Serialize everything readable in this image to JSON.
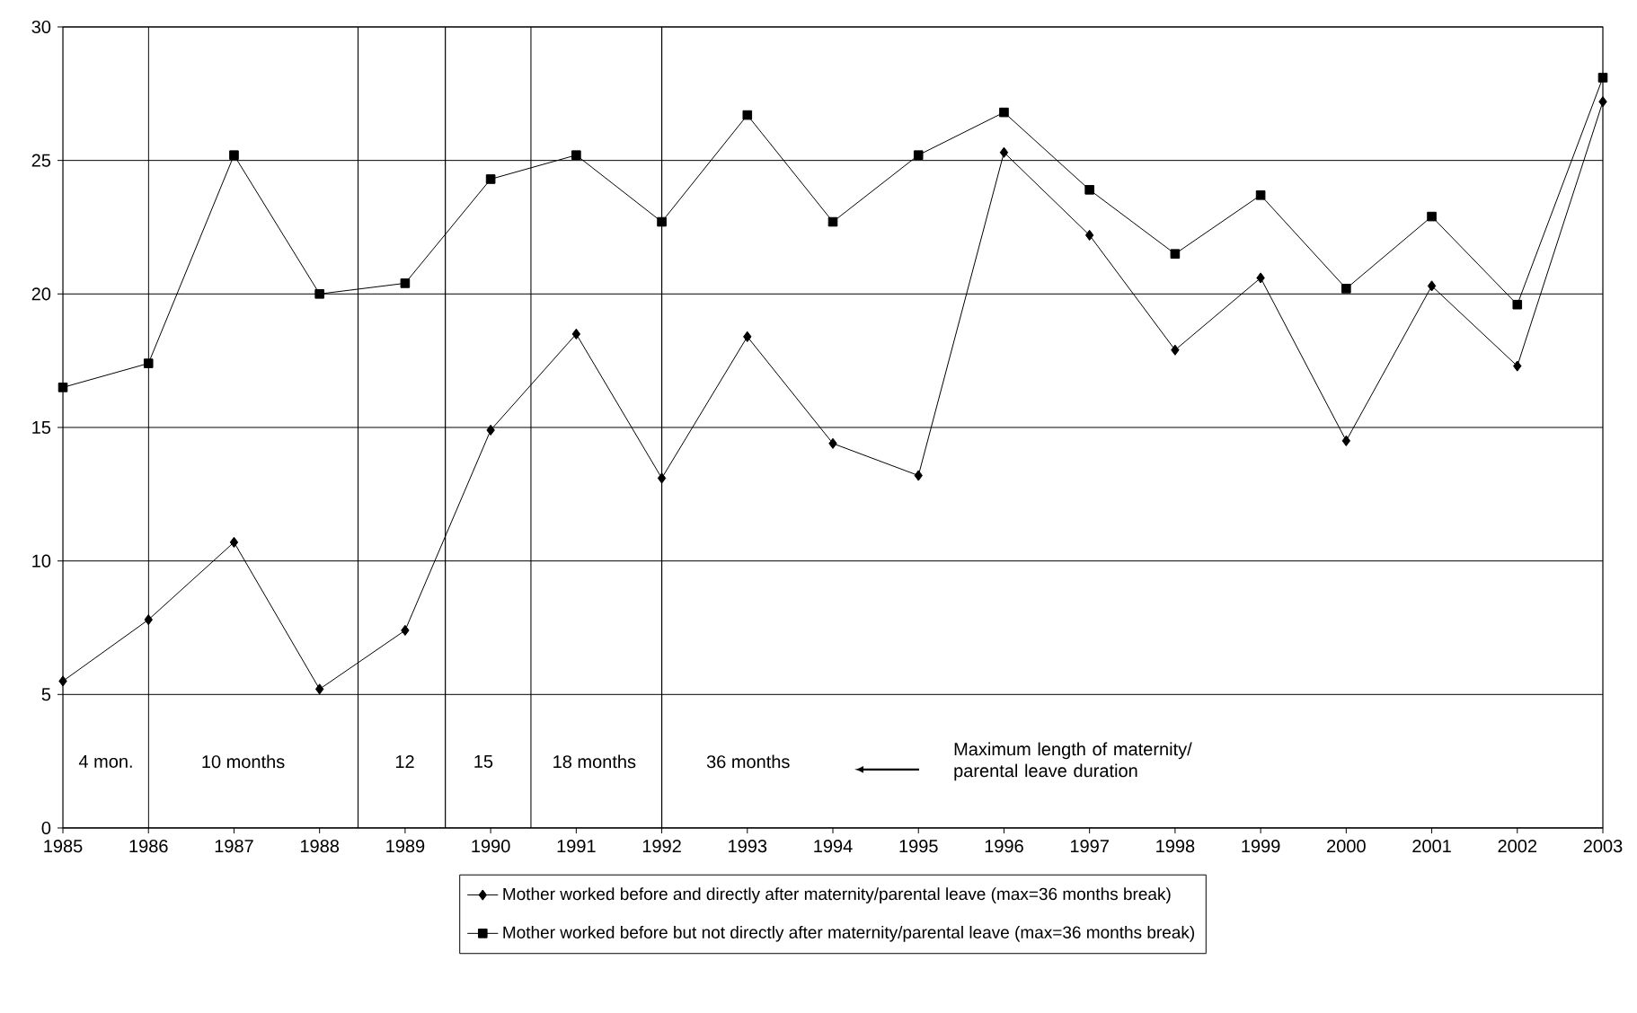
{
  "chart_data": {
    "type": "line",
    "x": [
      1985,
      1986,
      1987,
      1988,
      1989,
      1990,
      1991,
      1992,
      1993,
      1994,
      1995,
      1996,
      1997,
      1998,
      1999,
      2000,
      2001,
      2002,
      2003
    ],
    "series": [
      {
        "name": "Mother worked before and directly after maternity/parental leave (max=36 months break)",
        "color": "#000000",
        "marker": "diamond",
        "values": [
          5.5,
          7.8,
          10.7,
          5.2,
          7.4,
          14.9,
          18.5,
          13.1,
          18.4,
          14.4,
          13.2,
          25.3,
          22.2,
          17.9,
          20.6,
          14.5,
          20.3,
          17.3,
          27.2
        ]
      },
      {
        "name": "Mother worked before but not directly after maternity/parental leave (max=36 months break)",
        "color": "#000000",
        "marker": "square",
        "values": [
          16.5,
          17.4,
          25.2,
          20.0,
          20.4,
          24.3,
          25.2,
          22.7,
          26.7,
          22.7,
          25.2,
          26.8,
          23.9,
          21.5,
          23.7,
          20.2,
          22.9,
          19.6,
          28.1
        ]
      }
    ],
    "xlim": [
      1985,
      2003
    ],
    "xticks": [
      1985,
      1986,
      1987,
      1988,
      1989,
      1990,
      1991,
      1992,
      1993,
      1994,
      1995,
      1996,
      1997,
      1998,
      1999,
      2000,
      2001,
      2002,
      2003
    ],
    "ylim": [
      0,
      30
    ],
    "yticks": [
      0,
      5,
      10,
      15,
      20,
      25,
      30
    ],
    "grid": "y",
    "legend": "bottom",
    "ref_lines": [
      {
        "axis": "x",
        "value": 1986
      },
      {
        "axis": "x",
        "value": 1988.45
      },
      {
        "axis": "x",
        "value": 1989.47
      },
      {
        "axis": "x",
        "value": 1990.47
      },
      {
        "axis": "x",
        "value": 1992
      }
    ],
    "annotations": [
      "4 mon.",
      "10 months",
      "12",
      "15",
      "18 months",
      "36 months",
      "Maximum length of maternity/ parental leave duration"
    ]
  }
}
